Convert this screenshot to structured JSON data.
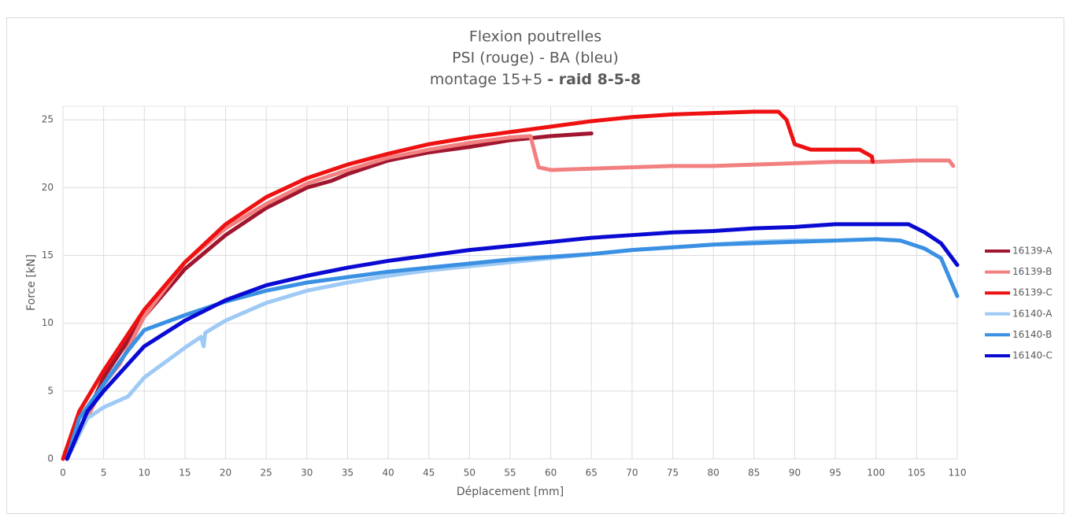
{
  "chart_data": {
    "type": "line",
    "title": [
      "Flexion poutrelles",
      "PSI (rouge) - BA (bleu)",
      "montage 15+5"
    ],
    "title_bold": "- raid 8-5-8",
    "x_label": "Déplacement [mm]",
    "y_label": "Force [kN]",
    "xlim": [
      0,
      110
    ],
    "xticks": [
      0,
      5,
      10,
      15,
      20,
      25,
      30,
      35,
      40,
      45,
      50,
      55,
      60,
      65,
      70,
      75,
      80,
      85,
      90,
      95,
      100,
      105,
      110
    ],
    "ylim": [
      0,
      26
    ],
    "yticks": [
      0,
      5,
      10,
      15,
      20,
      25
    ],
    "grid": true,
    "legend": "right",
    "series": [
      {
        "name": "16139-A",
        "color": "#a0162e",
        "x": [
          0.5,
          5,
          10,
          15,
          20,
          25,
          30,
          33,
          35,
          40,
          45,
          50,
          55,
          60,
          65
        ],
        "values": [
          0,
          6,
          10.5,
          14,
          16.5,
          18.5,
          20,
          20.5,
          21,
          22,
          22.6,
          23,
          23.5,
          23.8,
          24
        ]
      },
      {
        "name": "16139-B",
        "color": "#f28080",
        "x": [
          0.5,
          5,
          7,
          10,
          15,
          20,
          25,
          30,
          35,
          40,
          45,
          50,
          55,
          57.5,
          58.5,
          60,
          65,
          70,
          75,
          80,
          85,
          90,
          95,
          100,
          105,
          109,
          109.5
        ],
        "values": [
          0,
          5.5,
          7,
          10.5,
          14.5,
          17,
          18.8,
          20.3,
          21.3,
          22.2,
          22.8,
          23.3,
          23.7,
          23.8,
          21.5,
          21.3,
          21.4,
          21.5,
          21.6,
          21.6,
          21.7,
          21.8,
          21.9,
          21.9,
          22,
          22,
          21.6
        ]
      },
      {
        "name": "16139-C",
        "color": "#ee1111",
        "x": [
          0,
          2,
          5,
          10,
          15,
          20,
          25,
          30,
          35,
          40,
          45,
          50,
          55,
          60,
          65,
          70,
          75,
          80,
          85,
          88,
          89,
          90,
          92,
          95,
          98,
          99.5,
          99.6
        ],
        "values": [
          0,
          3.5,
          6.5,
          11,
          14.5,
          17.3,
          19.3,
          20.7,
          21.7,
          22.5,
          23.2,
          23.7,
          24.1,
          24.5,
          24.9,
          25.2,
          25.4,
          25.5,
          25.6,
          25.6,
          25,
          23.2,
          22.8,
          22.8,
          22.8,
          22.3,
          21.9
        ]
      },
      {
        "name": "16140-A",
        "color": "#9ecaf5",
        "x": [
          0.5,
          3,
          5,
          8,
          10,
          15,
          17,
          17.3,
          17.5,
          20,
          25,
          30,
          35,
          40,
          45,
          50,
          55,
          60,
          65,
          70,
          75,
          80,
          85,
          90,
          95
        ],
        "values": [
          0,
          3,
          3.8,
          4.6,
          6,
          8.2,
          9,
          8.3,
          9.3,
          10.2,
          11.5,
          12.4,
          13,
          13.5,
          13.9,
          14.2,
          14.5,
          14.8,
          15.1,
          15.4,
          15.6,
          15.8,
          16,
          16.1,
          16.1
        ]
      },
      {
        "name": "16140-B",
        "color": "#3a90e2",
        "x": [
          0.5,
          2,
          5,
          8,
          10,
          15,
          20,
          25,
          30,
          35,
          40,
          45,
          50,
          55,
          60,
          65,
          70,
          75,
          80,
          85,
          90,
          95,
          100,
          103,
          106,
          108,
          110
        ],
        "values": [
          0,
          3,
          5.5,
          8,
          9.5,
          10.6,
          11.6,
          12.4,
          13,
          13.4,
          13.8,
          14.1,
          14.4,
          14.7,
          14.9,
          15.1,
          15.4,
          15.6,
          15.8,
          15.9,
          16,
          16.1,
          16.2,
          16.1,
          15.5,
          14.8,
          12
        ]
      },
      {
        "name": "16140-C",
        "color": "#0a0ad2",
        "x": [
          0.5,
          3,
          5,
          10,
          15,
          20,
          25,
          30,
          35,
          40,
          45,
          50,
          55,
          60,
          65,
          70,
          75,
          80,
          85,
          90,
          95,
          100,
          104,
          106,
          108,
          110
        ],
        "values": [
          0,
          3.5,
          5,
          8.3,
          10.2,
          11.7,
          12.8,
          13.5,
          14.1,
          14.6,
          15,
          15.4,
          15.7,
          16,
          16.3,
          16.5,
          16.7,
          16.8,
          17,
          17.1,
          17.3,
          17.3,
          17.3,
          16.7,
          15.9,
          14.3
        ]
      }
    ]
  }
}
